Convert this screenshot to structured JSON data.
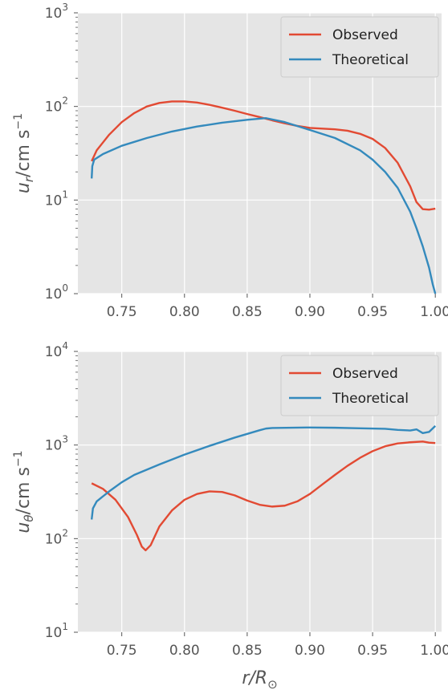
{
  "chart_data": [
    {
      "type": "line",
      "ylabel": {
        "base": "u",
        "subscript": "r",
        "unit": "/cm s",
        "exponent": "−1"
      },
      "xlabel": "",
      "xlim": [
        0.715,
        1.005
      ],
      "ylim": [
        1,
        1000
      ],
      "yscale": "log",
      "grid": true,
      "legend_position": "top-right",
      "x_ticks": [
        0.75,
        0.8,
        0.85,
        0.9,
        0.95,
        1.0
      ],
      "x_tick_labels": [
        "0.75",
        "0.80",
        "0.85",
        "0.90",
        "0.95",
        "1.00"
      ],
      "y_ticks": [
        1,
        10,
        100,
        1000
      ],
      "y_tick_labels": [
        {
          "base": "10",
          "exp": "0"
        },
        {
          "base": "10",
          "exp": "1"
        },
        {
          "base": "10",
          "exp": "2"
        },
        {
          "base": "10",
          "exp": "3"
        }
      ],
      "series": [
        {
          "name": "Observed",
          "color": "#E24A33",
          "x": [
            0.726,
            0.73,
            0.74,
            0.75,
            0.76,
            0.77,
            0.78,
            0.79,
            0.8,
            0.81,
            0.82,
            0.83,
            0.84,
            0.85,
            0.86,
            0.87,
            0.88,
            0.89,
            0.9,
            0.91,
            0.92,
            0.93,
            0.94,
            0.95,
            0.96,
            0.97,
            0.98,
            0.985,
            0.99,
            0.995,
            1.0
          ],
          "y": [
            26,
            34,
            50,
            68,
            85,
            100,
            109,
            113,
            113,
            110,
            104,
            97,
            90,
            83,
            77,
            71,
            66,
            62,
            59,
            58,
            57,
            55,
            51,
            45,
            36,
            25,
            14,
            9.5,
            8.0,
            7.9,
            8.1
          ]
        },
        {
          "name": "Theoretical",
          "color": "#348ABD",
          "x": [
            0.726,
            0.7265,
            0.728,
            0.735,
            0.75,
            0.77,
            0.79,
            0.81,
            0.83,
            0.85,
            0.865,
            0.88,
            0.9,
            0.92,
            0.94,
            0.95,
            0.96,
            0.97,
            0.98,
            0.985,
            0.99,
            0.995,
            0.998,
            1.0
          ],
          "y": [
            17,
            23,
            27,
            31,
            38,
            46,
            54,
            61,
            67,
            72,
            75,
            68,
            56,
            46,
            34,
            27,
            20,
            13.5,
            7.5,
            5.0,
            3.2,
            1.9,
            1.25,
            1.0
          ]
        }
      ]
    },
    {
      "type": "line",
      "ylabel": {
        "base": "u",
        "subscript": "θ",
        "unit": "/cm s",
        "exponent": "−1"
      },
      "xlabel": {
        "base": "r/R",
        "subscript": "⊙"
      },
      "xlim": [
        0.715,
        1.005
      ],
      "ylim": [
        10,
        10000
      ],
      "yscale": "log",
      "grid": true,
      "legend_position": "top-right",
      "x_ticks": [
        0.75,
        0.8,
        0.85,
        0.9,
        0.95,
        1.0
      ],
      "x_tick_labels": [
        "0.75",
        "0.80",
        "0.85",
        "0.90",
        "0.95",
        "1.00"
      ],
      "y_ticks": [
        10,
        100,
        1000,
        10000
      ],
      "y_tick_labels": [
        {
          "base": "10",
          "exp": "1"
        },
        {
          "base": "10",
          "exp": "2"
        },
        {
          "base": "10",
          "exp": "3"
        },
        {
          "base": "10",
          "exp": "4"
        }
      ],
      "series": [
        {
          "name": "Observed",
          "color": "#E24A33",
          "x": [
            0.726,
            0.735,
            0.745,
            0.755,
            0.762,
            0.766,
            0.769,
            0.773,
            0.78,
            0.79,
            0.8,
            0.81,
            0.82,
            0.83,
            0.84,
            0.85,
            0.86,
            0.87,
            0.88,
            0.89,
            0.9,
            0.91,
            0.92,
            0.93,
            0.94,
            0.95,
            0.96,
            0.97,
            0.98,
            0.99,
            0.995,
            1.0
          ],
          "y": [
            390,
            340,
            260,
            170,
            110,
            82,
            75,
            85,
            135,
            200,
            260,
            300,
            320,
            315,
            290,
            255,
            230,
            220,
            225,
            250,
            300,
            380,
            480,
            600,
            730,
            860,
            970,
            1040,
            1070,
            1090,
            1060,
            1050
          ]
        },
        {
          "name": "Theoretical",
          "color": "#348ABD",
          "x": [
            0.726,
            0.727,
            0.73,
            0.74,
            0.75,
            0.76,
            0.78,
            0.8,
            0.82,
            0.84,
            0.86,
            0.865,
            0.87,
            0.9,
            0.92,
            0.94,
            0.96,
            0.97,
            0.98,
            0.985,
            0.99,
            0.995,
            1.0
          ],
          "y": [
            160,
            210,
            250,
            320,
            400,
            480,
            620,
            790,
            980,
            1200,
            1440,
            1500,
            1520,
            1540,
            1530,
            1510,
            1490,
            1450,
            1430,
            1470,
            1340,
            1380,
            1600
          ]
        }
      ]
    }
  ]
}
